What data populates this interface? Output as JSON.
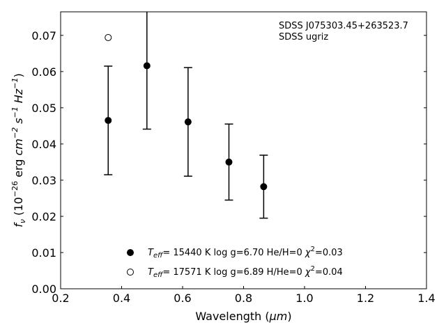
{
  "chart_data": {
    "type": "scatter",
    "xlim": [
      0.2,
      1.4
    ],
    "ylim": [
      0.0,
      0.0765
    ],
    "xticks": [
      "0.2",
      "0.4",
      "0.6",
      "0.8",
      "1.0",
      "1.2",
      "1.4"
    ],
    "yticks": [
      "0.00",
      "0.01",
      "0.02",
      "0.03",
      "0.04",
      "0.05",
      "0.06",
      "0.07"
    ],
    "xlabel_main": "Wavelength (",
    "xlabel_unit": "μm",
    "xlabel_close": ")",
    "ylabel": {
      "f": "f",
      "f_sub": "ν",
      "open": " (10",
      "exp1": "−26",
      "erg": " erg ",
      "cm": "cm",
      "exp2": "−2",
      "s": " s",
      "exp3": "−1",
      "hz": " Hz",
      "exp4": "−1",
      "close": ")"
    },
    "annotation": {
      "line1": "SDSS J075303.45+263523.7",
      "line2": "SDSS ugriz"
    },
    "series": [
      {
        "marker": "filled-circle",
        "x": [
          0.356,
          0.483,
          0.618,
          0.752,
          0.866
        ],
        "y": [
          0.0465,
          0.0616,
          0.0461,
          0.035,
          0.0282
        ],
        "yerr": [
          0.015,
          0.0175,
          0.015,
          0.0105,
          0.0087
        ],
        "legend": {
          "T": "T",
          "T_sub": "eff",
          "temp": "= 15440 K  log g=6.70  He/H=0  ",
          "chi": "χ",
          "chi_sup": "2",
          "chi_val": "=0.03"
        }
      },
      {
        "marker": "open-circle",
        "x": [
          0.356
        ],
        "y": [
          0.0694
        ],
        "legend": {
          "T": "T",
          "T_sub": "eff",
          "temp": "= 17571 K  log g=6.89  H/He=0  ",
          "chi": "χ",
          "chi_sup": "2",
          "chi_val": "=0.04"
        }
      }
    ],
    "colors": {
      "marker": "#000000",
      "axes": "#000000",
      "background": "#ffffff"
    }
  }
}
